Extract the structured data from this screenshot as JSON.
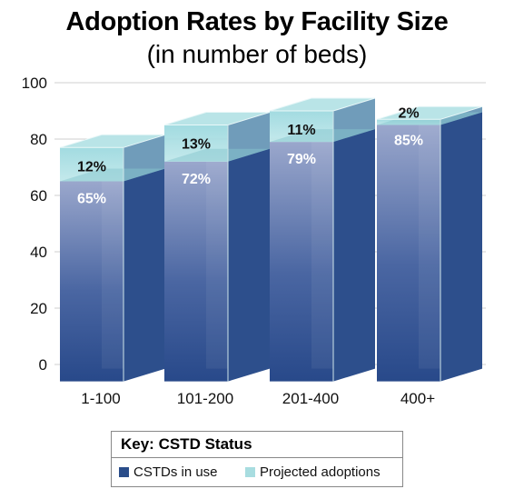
{
  "title": "Adoption Rates by Facility Size",
  "subtitle": "(in number of beds)",
  "legend": {
    "title": "Key: CSTD Status",
    "in_use_label": "CSTDs in use",
    "projected_label": "Projected adoptions"
  },
  "colors": {
    "in_use": "#2a4d8a",
    "projected": "#a8dde0"
  },
  "chart_data": {
    "type": "bar",
    "stacked": true,
    "categories": [
      "1-100",
      "101-200",
      "201-400",
      "400+"
    ],
    "series": [
      {
        "name": "CSTDs in use",
        "values": [
          65,
          72,
          79,
          85
        ],
        "labels": [
          "65%",
          "72%",
          "79%",
          "85%"
        ]
      },
      {
        "name": "Projected adoptions",
        "values": [
          12,
          13,
          11,
          2
        ],
        "labels": [
          "12%",
          "13%",
          "11%",
          "2%"
        ]
      }
    ],
    "yticks": [
      0,
      20,
      40,
      60,
      80,
      100
    ],
    "ylim": [
      -6,
      100
    ],
    "grid": true,
    "legend_position": "bottom"
  }
}
